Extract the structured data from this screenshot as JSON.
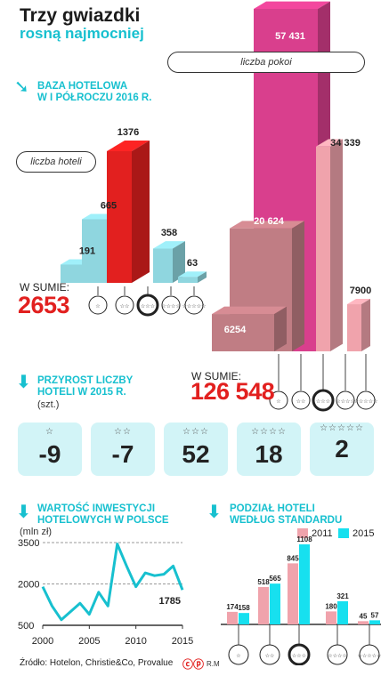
{
  "header": {
    "title": "Trzy gwiazdki",
    "subtitle": "rosną najmocniej"
  },
  "hotel_base": {
    "heading_line1": "BAZA HOTELOWA",
    "heading_line2": "W I PÓŁROCZU 2016 R.",
    "hotels_pill": "liczba hoteli",
    "rooms_pill": "liczba pokoi",
    "hotels_sum_label": "W SUMIE:",
    "hotels_sum_value": "2653",
    "rooms_sum_label": "W SUMIE:",
    "rooms_sum_value": "126 548"
  },
  "growth": {
    "heading_line1": "PRZYROST LICZBY",
    "heading_line2": "HOTELI W 2015 R.",
    "unit": "(szt.)",
    "cards": [
      {
        "stars": "☆",
        "value": "-9"
      },
      {
        "stars": "☆☆",
        "value": "-7"
      },
      {
        "stars": "☆☆☆",
        "value": "52"
      },
      {
        "stars": "☆☆☆☆",
        "value": "18"
      },
      {
        "stars": "☆☆☆☆☆",
        "value": "2"
      }
    ]
  },
  "investment": {
    "heading_line1": "WARTOŚĆ INWESTYCJI",
    "heading_line2": "HOTELOWYCH W POLSCE",
    "unit": "(mln zł)",
    "last_label": "1785"
  },
  "standard": {
    "heading_line1": "PODZIAŁ HOTELI",
    "heading_line2": "WEDŁUG STANDARDU",
    "legend_2011": "2011",
    "legend_2015": "2015"
  },
  "footer": {
    "source": "Źródło: Hotelon, Christie&Co, Provalue",
    "author": "R.M"
  },
  "colors": {
    "cyan": "#17c0cf",
    "light_cyan": "#8fd6df",
    "red": "#e2201f",
    "pink": "#f0a3ac",
    "mauve": "#c07d84",
    "magenta": "#d93f8d",
    "card_bg": "#d2f4f7"
  },
  "chart_data": [
    {
      "type": "bar",
      "title": "liczba hoteli",
      "categories": [
        "☆",
        "☆☆",
        "☆☆☆",
        "☆☆☆☆",
        "☆☆☆☆☆"
      ],
      "values": [
        191,
        665,
        1376,
        358,
        63
      ],
      "highlight_category": "☆☆☆"
    },
    {
      "type": "bar",
      "title": "liczba pokoi",
      "categories": [
        "☆",
        "☆☆",
        "☆☆☆",
        "☆☆☆☆",
        "☆☆☆☆☆"
      ],
      "values": [
        6254,
        20624,
        57431,
        34339,
        7900
      ],
      "highlight_category": "☆☆☆"
    },
    {
      "type": "line",
      "title": "WARTOŚĆ INWESTYCJI HOTELOWYCH W POLSCE",
      "ylabel": "(mln zł)",
      "x": [
        2000,
        2001,
        2002,
        2003,
        2004,
        2005,
        2006,
        2007,
        2008,
        2009,
        2010,
        2011,
        2012,
        2013,
        2014,
        2015
      ],
      "y": [
        1900,
        1200,
        700,
        1000,
        1300,
        900,
        1700,
        1200,
        3450,
        2650,
        1900,
        2400,
        2300,
        2350,
        2650,
        1785
      ],
      "xticks": [
        "2000",
        "2005",
        "2010",
        "2015"
      ],
      "yticks": [
        "500",
        "2000",
        "3500"
      ],
      "ylim": [
        500,
        3500
      ],
      "xlim": [
        2000,
        2015
      ],
      "grid": true
    },
    {
      "type": "bar",
      "title": "PODZIAŁ HOTELI WEDŁUG STANDARDU",
      "categories": [
        "☆",
        "☆☆",
        "☆☆☆",
        "☆☆☆☆",
        "☆☆☆☆☆"
      ],
      "series": [
        {
          "name": "2011",
          "values": [
            174,
            518,
            845,
            180,
            45
          ],
          "color": "#f0a3ac"
        },
        {
          "name": "2015",
          "values": [
            158,
            565,
            1108,
            321,
            57
          ],
          "color": "#17e0ef"
        }
      ],
      "legend": "top"
    }
  ]
}
